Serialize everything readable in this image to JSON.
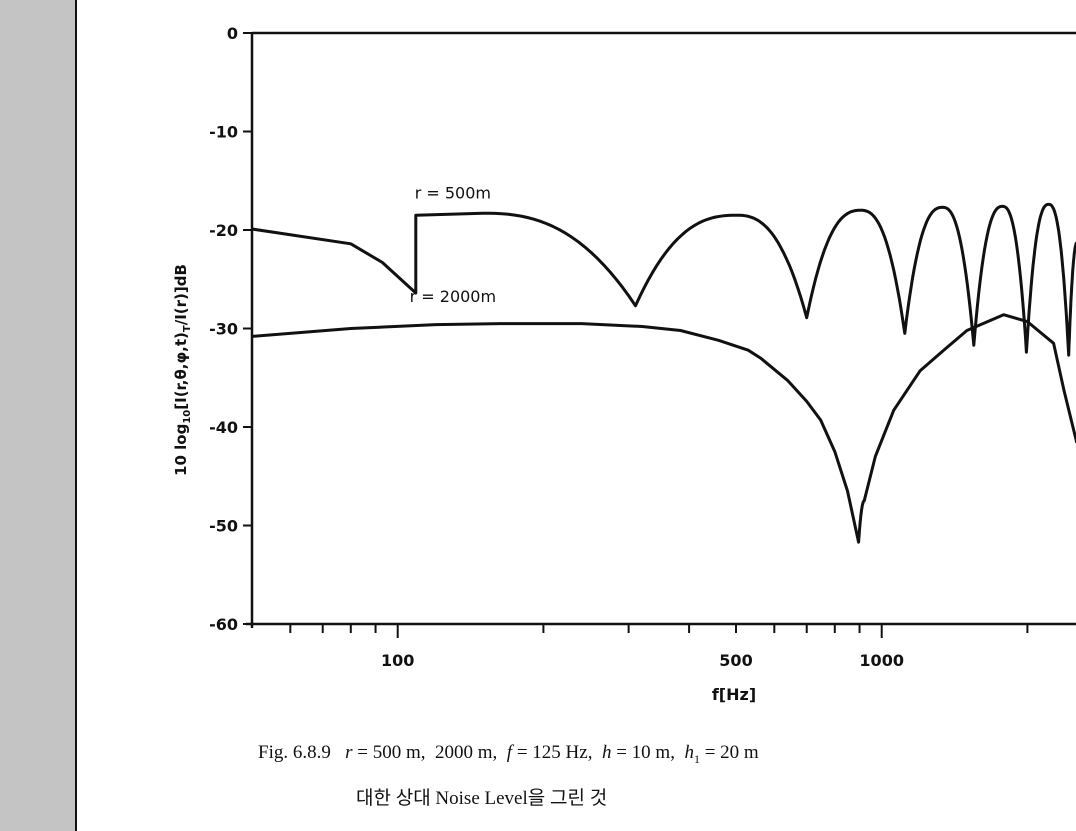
{
  "chart_data": {
    "type": "line",
    "xscale": "log",
    "xlim": [
      50,
      2530
    ],
    "ylim": [
      -60,
      0
    ],
    "xlabel": "f[Hz]",
    "ylabel": {
      "a": "10 log",
      "sub1": "10",
      "b": "[I(r,θ,φ,t)",
      "sub2": "T",
      "c": "/I(r)]dB"
    },
    "yticks": [
      {
        "value": 0,
        "label": "0"
      },
      {
        "value": -10,
        "label": "-10"
      },
      {
        "value": -20,
        "label": "-20"
      },
      {
        "value": -30,
        "label": "-30"
      },
      {
        "value": -40,
        "label": "-40"
      },
      {
        "value": -50,
        "label": "-50"
      },
      {
        "value": -60,
        "label": "-60"
      }
    ],
    "xticks_minor": [
      60,
      70,
      80,
      90,
      200,
      300,
      400,
      600,
      700,
      800,
      900,
      2000
    ],
    "xticks_major": [
      {
        "value": 100,
        "label": "100"
      },
      {
        "value": 500,
        "label": "500"
      },
      {
        "value": 1000,
        "label": "1000"
      }
    ],
    "grid": false,
    "series": [
      {
        "name": "r = 500m",
        "label_at": [
          130,
          -16.8
        ],
        "points": [
          [
            50,
            -19.9,
            "pt"
          ],
          [
            80,
            -21.4,
            "pt"
          ],
          [
            93,
            -23.3,
            "pt"
          ],
          [
            109,
            -26.4,
            "pt"
          ],
          [
            109,
            -18.5,
            "pt"
          ],
          [
            150,
            -18.3,
            "peak"
          ],
          [
            310,
            -27.7,
            "dip"
          ],
          [
            502,
            -18.5,
            "peak"
          ],
          [
            700,
            -28.9,
            "dip"
          ],
          [
            905,
            -18.0,
            "peak"
          ],
          [
            1116,
            -30.5,
            "dip"
          ],
          [
            1336,
            -17.7,
            "peak"
          ],
          [
            1550,
            -31.7,
            "dip"
          ],
          [
            1777,
            -17.6,
            "peak"
          ],
          [
            1991,
            -32.4,
            "dip"
          ],
          [
            2213,
            -17.4,
            "peak"
          ],
          [
            2434,
            -32.7,
            "dip"
          ],
          [
            2530,
            -21.3,
            "pt"
          ]
        ]
      },
      {
        "name": "r = 2000m",
        "label_at": [
          130,
          -27.3
        ],
        "points": [
          [
            50,
            -30.8,
            "pt"
          ],
          [
            80,
            -30.0,
            "pt"
          ],
          [
            120,
            -29.6,
            "pt"
          ],
          [
            163,
            -29.5,
            "pt"
          ],
          [
            240,
            -29.5,
            "pt"
          ],
          [
            320,
            -29.8,
            "pt"
          ],
          [
            384,
            -30.2,
            "pt"
          ],
          [
            460,
            -31.2,
            "pt"
          ],
          [
            530,
            -32.2,
            "pt"
          ],
          [
            562,
            -33.0,
            "pt"
          ],
          [
            640,
            -35.3,
            "pt"
          ],
          [
            700,
            -37.4,
            "pt"
          ],
          [
            748,
            -39.3,
            "pt"
          ],
          [
            800,
            -42.5,
            "pt"
          ],
          [
            850,
            -46.5,
            "pt"
          ],
          [
            896,
            -51.7,
            "dip"
          ],
          [
            920,
            -47.5,
            "pt"
          ],
          [
            970,
            -43.0,
            "pt"
          ],
          [
            1059,
            -38.3,
            "pt"
          ],
          [
            1200,
            -34.3,
            "pt"
          ],
          [
            1343,
            -32.2,
            "pt"
          ],
          [
            1500,
            -30.2,
            "pt"
          ],
          [
            1786,
            -28.6,
            "pt"
          ],
          [
            2000,
            -29.3,
            "pt"
          ],
          [
            2266,
            -31.5,
            "pt"
          ],
          [
            2378,
            -36.2,
            "pt"
          ],
          [
            2530,
            -41.6,
            "pt"
          ]
        ]
      }
    ]
  },
  "caption": {
    "fig": "Fig. 6.8.9",
    "r_sym": "r",
    "r_val": " = 500 m,  2000 m,  ",
    "f_sym": "f",
    "f_val": " = 125 Hz,  ",
    "h_sym": "h",
    "h_val": " = 10 m,  ",
    "h1_sym": "h",
    "h1_sub": "1",
    "h1_val": " = 20 m",
    "line2": "대한 상대 Noise Level을 그린 것"
  },
  "colors": {
    "sidebar": "#c4c4c4",
    "ink": "#111111"
  }
}
